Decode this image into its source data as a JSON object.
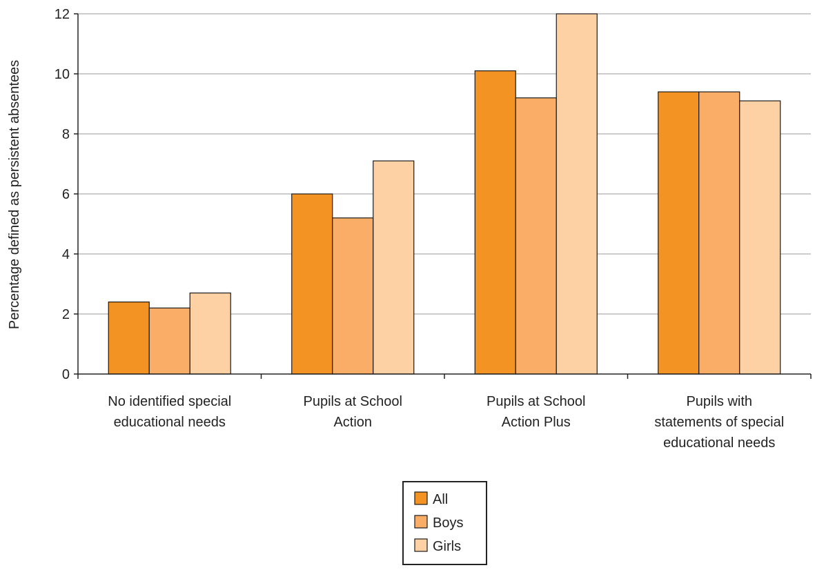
{
  "chart_data": {
    "type": "bar",
    "title": "",
    "xlabel": "",
    "ylabel": "Percentage defined as persistent absentees",
    "ylim": [
      0,
      12
    ],
    "yticks": [
      0,
      2,
      4,
      6,
      8,
      10,
      12
    ],
    "grid": true,
    "legend_position": "bottom-center",
    "categories": [
      [
        "No identified special",
        "educational needs"
      ],
      [
        "Pupils at School",
        "Action"
      ],
      [
        "Pupils at School",
        "Action Plus"
      ],
      [
        "Pupils with",
        "statements of special",
        "educational needs"
      ]
    ],
    "series": [
      {
        "name": "All",
        "color": "#f39324",
        "values": [
          2.4,
          6.0,
          10.1,
          9.4
        ]
      },
      {
        "name": "Boys",
        "color": "#f9ad66",
        "values": [
          2.2,
          5.2,
          9.2,
          9.4
        ]
      },
      {
        "name": "Girls",
        "color": "#fdd1a3",
        "values": [
          2.7,
          7.1,
          12.0,
          9.1
        ]
      }
    ]
  }
}
